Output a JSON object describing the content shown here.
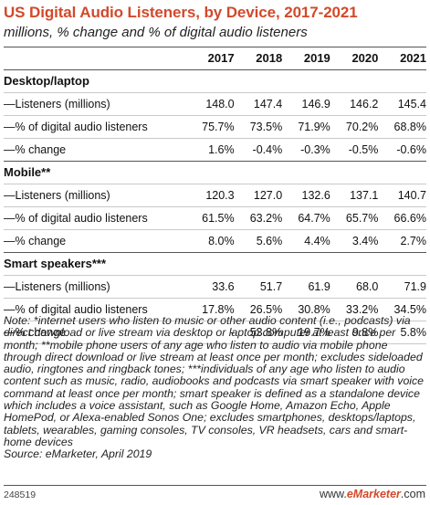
{
  "title": "US Digital Audio Listeners, by Device, 2017-2021",
  "subtitle": "millions, % change and % of digital audio listeners",
  "colors": {
    "accent": "#d2492a"
  },
  "chart_data": {
    "type": "table",
    "title": "US Digital Audio Listeners, by Device, 2017-2021",
    "subtitle": "millions, % change and % of digital audio listeners",
    "columns": [
      "2017",
      "2018",
      "2019",
      "2020",
      "2021"
    ],
    "sections": [
      {
        "label": "Desktop/laptop",
        "rows": [
          {
            "label": "—Listeners (millions)",
            "values": [
              "148.0",
              "147.4",
              "146.9",
              "146.2",
              "145.4"
            ]
          },
          {
            "label": "—% of digital audio listeners",
            "values": [
              "75.7%",
              "73.5%",
              "71.9%",
              "70.2%",
              "68.8%"
            ]
          },
          {
            "label": "—% change",
            "values": [
              "1.6%",
              "-0.4%",
              "-0.3%",
              "-0.5%",
              "-0.6%"
            ]
          }
        ]
      },
      {
        "label": "Mobile**",
        "rows": [
          {
            "label": "—Listeners (millions)",
            "values": [
              "120.3",
              "127.0",
              "132.6",
              "137.1",
              "140.7"
            ]
          },
          {
            "label": "—% of digital audio listeners",
            "values": [
              "61.5%",
              "63.2%",
              "64.7%",
              "65.7%",
              "66.6%"
            ]
          },
          {
            "label": "—% change",
            "values": [
              "8.0%",
              "5.6%",
              "4.4%",
              "3.4%",
              "2.7%"
            ]
          }
        ]
      },
      {
        "label": "Smart speakers***",
        "rows": [
          {
            "label": "—Listeners (millions)",
            "values": [
              "33.6",
              "51.7",
              "61.9",
              "68.0",
              "71.9"
            ]
          },
          {
            "label": "—% of digital audio listeners",
            "values": [
              "17.8%",
              "26.5%",
              "30.8%",
              "33.2%",
              "34.5%"
            ]
          },
          {
            "label": "—% change",
            "values": [
              "-",
              "53.8%",
              "19.7%",
              "9.8%",
              "5.8%"
            ]
          }
        ]
      }
    ]
  },
  "notes": "Note: *internet users who listen to music or other audio content (i.e., podcasts) via direct download or live stream via desktop or laptop computer at least once per month; **mobile phone users of any age who listen to audio via mobile phone through direct download or live stream at least once per month; excludes sideloaded audio, ringtones and ringback tones; ***individuals of any age who listen to audio content such as music, radio, audiobooks and podcasts via smart speaker with voice command at least once per month; smart speaker is defined as a standalone device which includes a voice assistant, such as Google Home, Amazon Echo, Apple HomePod, or Alexa-enabled Sonos One; excludes smartphones, desktops/laptops, tablets, wearables, gaming consoles, TV consoles, VR headsets, cars and smart-home devices",
  "source": "Source: eMarketer, April 2019",
  "footer_id": "248519",
  "brand": {
    "prefix": "www.",
    "name": "eMarketer",
    "suffix": ".com"
  }
}
